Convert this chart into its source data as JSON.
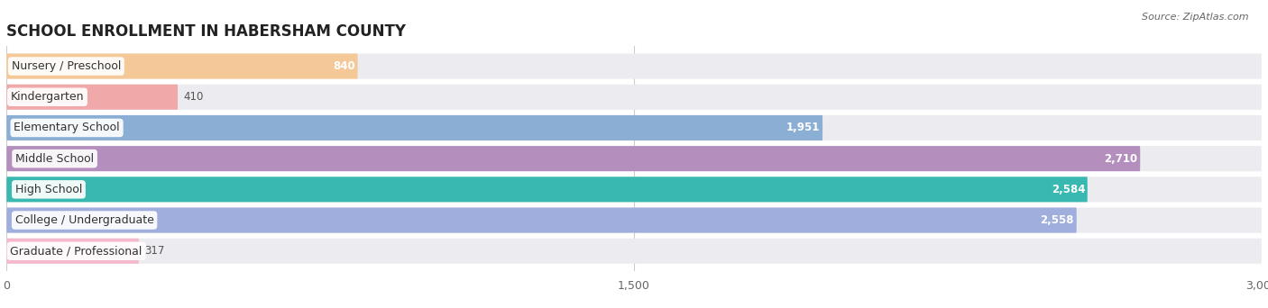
{
  "title": "SCHOOL ENROLLMENT IN HABERSHAM COUNTY",
  "source": "Source: ZipAtlas.com",
  "categories": [
    "Nursery / Preschool",
    "Kindergarten",
    "Elementary School",
    "Middle School",
    "High School",
    "College / Undergraduate",
    "Graduate / Professional"
  ],
  "values": [
    840,
    410,
    1951,
    2710,
    2584,
    2558,
    317
  ],
  "bar_colors": [
    "#f5c898",
    "#f0a8a8",
    "#8aaed4",
    "#b48fbe",
    "#38b8b0",
    "#a0aedd",
    "#f5b8cc"
  ],
  "bar_bg_color": "#ebebf0",
  "xlim": [
    0,
    3000
  ],
  "xticks": [
    0,
    1500,
    3000
  ],
  "title_fontsize": 12,
  "label_fontsize": 9,
  "value_fontsize": 8.5,
  "background_color": "#ffffff",
  "value_threshold": 600
}
